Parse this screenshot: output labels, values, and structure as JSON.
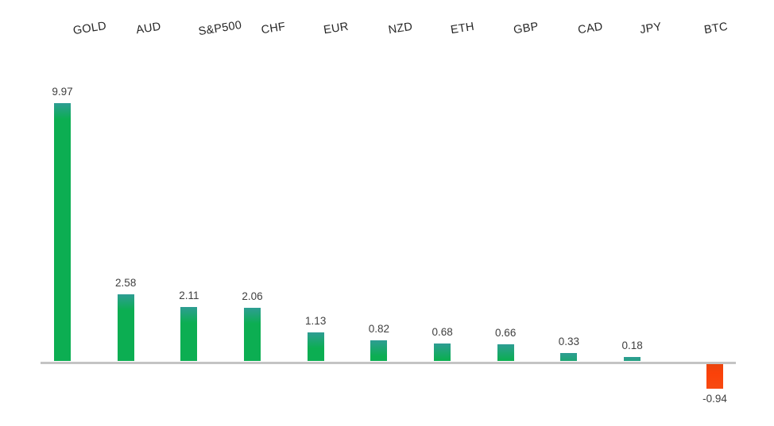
{
  "chart_data": {
    "type": "bar",
    "categories": [
      "GOLD",
      "AUD",
      "S&P500",
      "CHF",
      "EUR",
      "NZD",
      "ETH",
      "GBP",
      "CAD",
      "JPY",
      "BTC"
    ],
    "values": [
      9.97,
      2.58,
      2.11,
      2.06,
      1.13,
      0.82,
      0.68,
      0.66,
      0.33,
      0.18,
      -0.94
    ],
    "value_labels": [
      "9.97",
      "2.58",
      "2.11",
      "2.06",
      "1.13",
      "0.82",
      "0.68",
      "0.66",
      "0.33",
      "0.18",
      "-0.94"
    ],
    "title": "",
    "xlabel": "",
    "ylabel": "",
    "ylim": [
      -1.5,
      10.5
    ],
    "baseline": 0,
    "grid": "off",
    "legend": "none",
    "category_axis_position": "top",
    "colors": {
      "positive_bar_top": "#2e9d93",
      "positive_bar": "#0cae52",
      "negative_bar_top": "#ea450f",
      "negative_bar": "#fb4109",
      "negative_bar_bottom": "#f74a11",
      "axis_line": "#c4c4c4",
      "value_text": "#3f3f3f",
      "category_text": "#262626",
      "background": "#ffffff"
    }
  }
}
